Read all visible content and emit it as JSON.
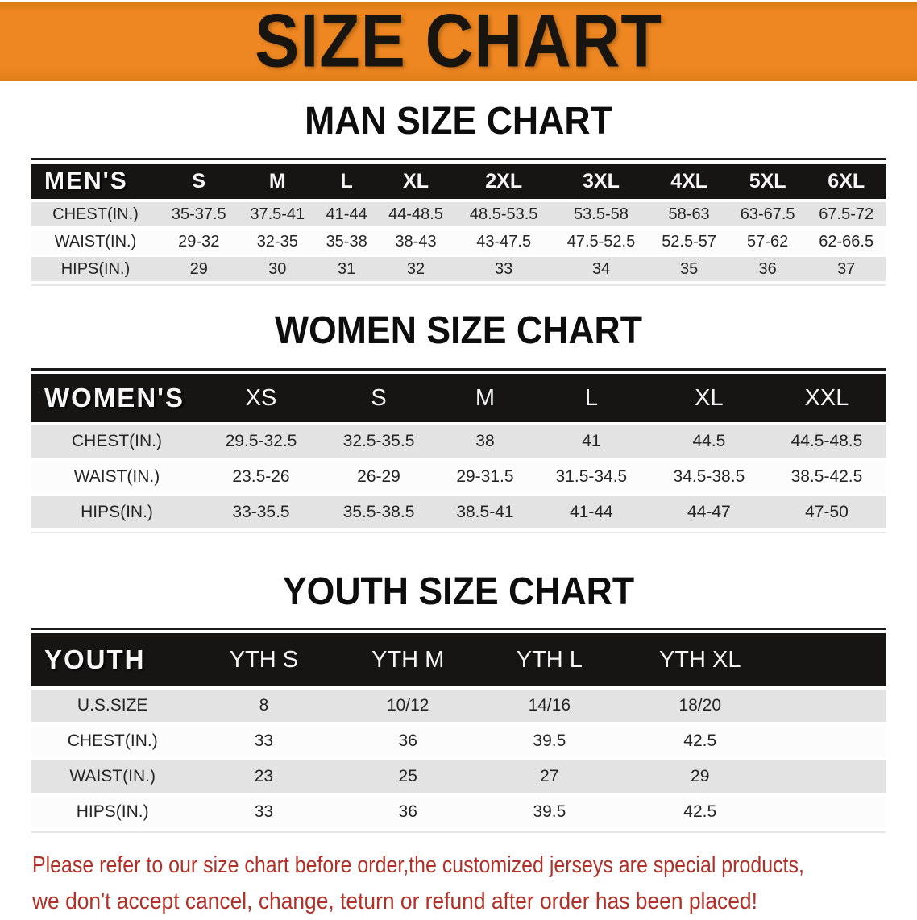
{
  "banner": {
    "title": "SIZE CHART"
  },
  "colors": {
    "banner_bg": "#ee8722",
    "header_bar": "#171513",
    "row_gray": "#e3e3e3",
    "row_white": "#fcfcfc",
    "disclaimer_red": "#b13028"
  },
  "sections": [
    {
      "id": "men",
      "title": "MAN SIZE CHART",
      "table": {
        "header": [
          "MEN'S",
          "S",
          "M",
          "L",
          "XL",
          "2XL",
          "3XL",
          "4XL",
          "5XL",
          "6XL"
        ],
        "rows": [
          {
            "label": "CHEST(IN.)",
            "values": [
              "35-37.5",
              "37.5-41",
              "41-44",
              "44-48.5",
              "48.5-53.5",
              "53.5-58",
              "58-63",
              "63-67.5",
              "67.5-72"
            ]
          },
          {
            "label": "WAIST(IN.)",
            "values": [
              "29-32",
              "32-35",
              "35-38",
              "38-43",
              "43-47.5",
              "47.5-52.5",
              "52.5-57",
              "57-62",
              "62-66.5"
            ]
          },
          {
            "label": "HIPS(IN.)",
            "values": [
              "29",
              "30",
              "31",
              "32",
              "33",
              "34",
              "35",
              "36",
              "37"
            ]
          }
        ]
      }
    },
    {
      "id": "women",
      "title": "WOMEN SIZE CHART",
      "table": {
        "header": [
          "WOMEN'S",
          "XS",
          "S",
          "M",
          "L",
          "XL",
          "XXL"
        ],
        "rows": [
          {
            "label": "CHEST(IN.)",
            "values": [
              "29.5-32.5",
              "32.5-35.5",
              "38",
              "41",
              "44.5",
              "44.5-48.5"
            ]
          },
          {
            "label": "WAIST(IN.)",
            "values": [
              "23.5-26",
              "26-29",
              "29-31.5",
              "31.5-34.5",
              "34.5-38.5",
              "38.5-42.5"
            ]
          },
          {
            "label": "HIPS(IN.)",
            "values": [
              "33-35.5",
              "35.5-38.5",
              "38.5-41",
              "41-44",
              "44-47",
              "47-50"
            ]
          }
        ]
      }
    },
    {
      "id": "youth",
      "title": "YOUTH SIZE CHART",
      "table": {
        "header": [
          "YOUTH",
          "YTH S",
          "YTH M",
          "YTH L",
          "YTH XL"
        ],
        "rows": [
          {
            "label": "U.S.SIZE",
            "values": [
              "8",
              "10/12",
              "14/16",
              "18/20"
            ]
          },
          {
            "label": "CHEST(IN.)",
            "values": [
              "33",
              "36",
              "39.5",
              "42.5"
            ]
          },
          {
            "label": "WAIST(IN.)",
            "values": [
              "23",
              "25",
              "27",
              "29"
            ]
          },
          {
            "label": "HIPS(IN.)",
            "values": [
              "33",
              "36",
              "39.5",
              "42.5"
            ]
          }
        ]
      }
    }
  ],
  "disclaimer": {
    "lines": [
      "Please refer to our size chart before order,the customized jerseys are special products,",
      "we don't accept cancel, change, teturn or refund after order has been placed!"
    ]
  }
}
